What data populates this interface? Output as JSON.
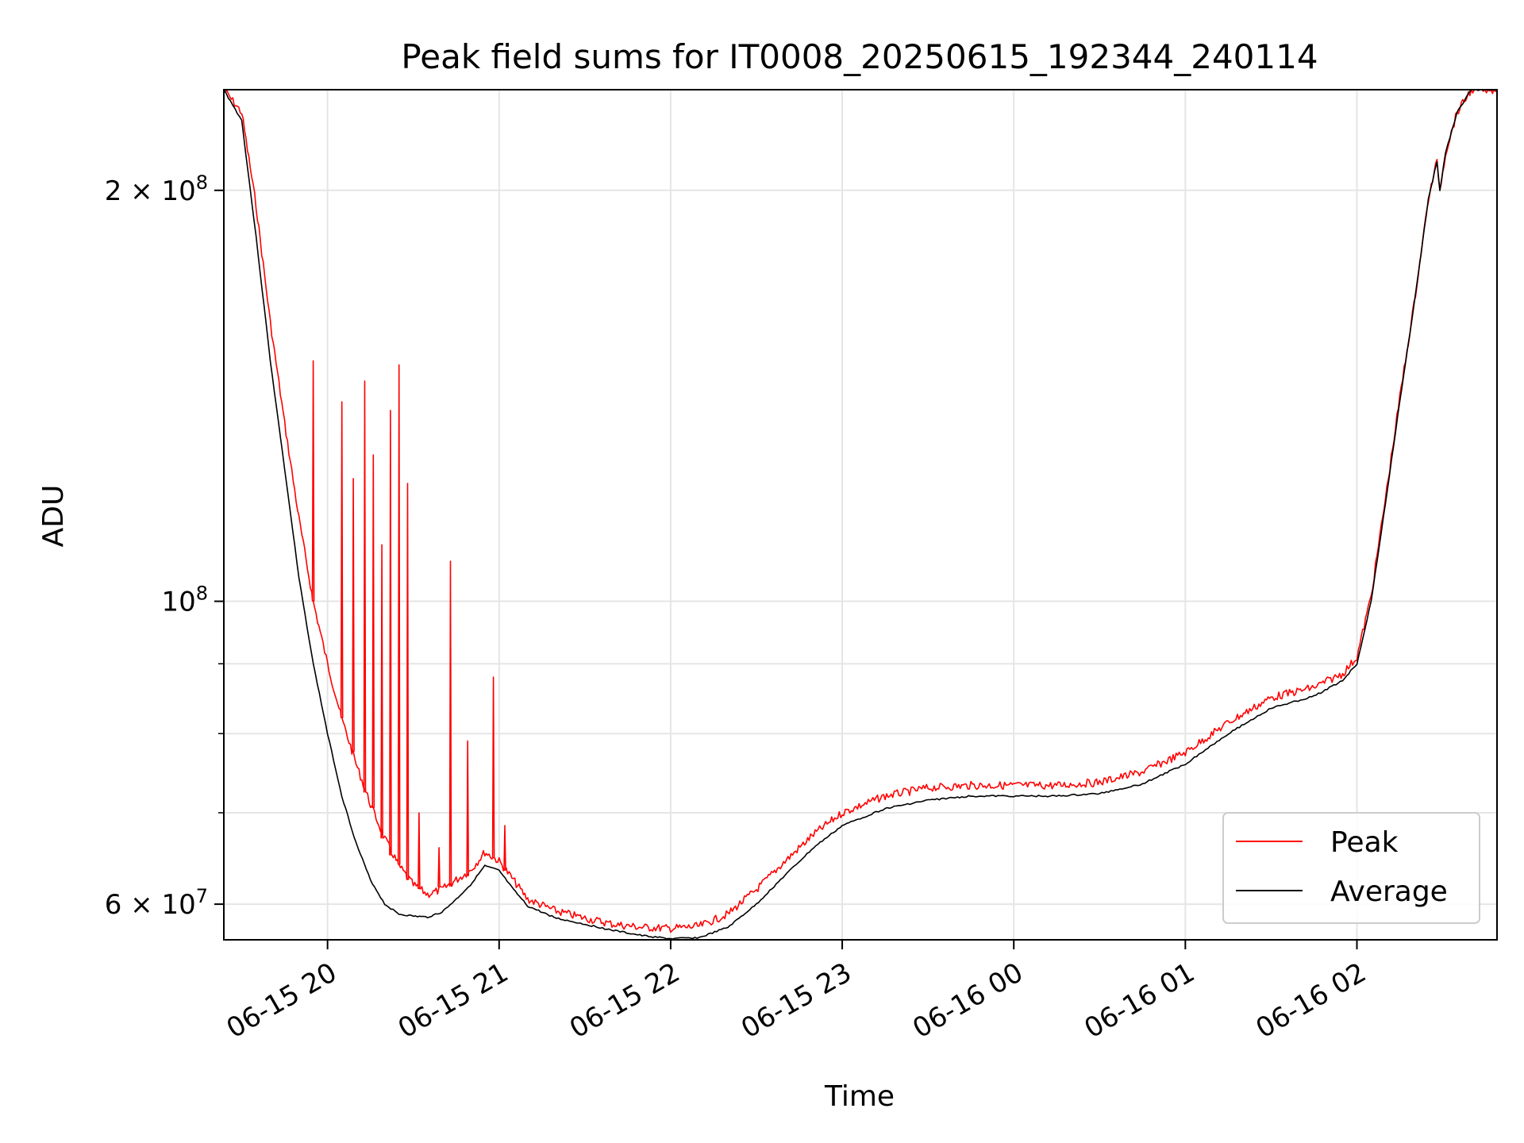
{
  "chart_data": {
    "type": "line",
    "title": "Peak field sums for IT0008_20250615_192344_240114",
    "xlabel": "Time",
    "ylabel": "ADU",
    "yscale": "log",
    "grid": true,
    "legend_position": "lower-right",
    "x_range": [
      "2025-06-15 19:23:44",
      "2025-06-16 02:49:00"
    ],
    "ylim": [
      56500000,
      237000000
    ],
    "x_ticks": [
      "06-15 20",
      "06-15 21",
      "06-15 22",
      "06-15 23",
      "06-16 00",
      "06-16 01",
      "06-16 02"
    ],
    "x_tick_times": [
      "2025-06-15 20:00",
      "2025-06-15 21:00",
      "2025-06-15 22:00",
      "2025-06-15 23:00",
      "2025-06-16 00:00",
      "2025-06-16 01:00",
      "2025-06-16 02:00"
    ],
    "y_major_ticks": [
      {
        "value": 60000000,
        "base": "6 × 10",
        "exp": "7"
      },
      {
        "value": 100000000,
        "base": "10",
        "exp": "8"
      },
      {
        "value": 200000000,
        "base": "2 × 10",
        "exp": "8"
      }
    ],
    "y_minor_ticks": [
      70000000,
      80000000,
      90000000
    ],
    "series": [
      {
        "name": "Average",
        "color": "#000000",
        "x": [
          "2025-06-15 19:23:44",
          "2025-06-15 19:30",
          "2025-06-15 19:35",
          "2025-06-15 19:40",
          "2025-06-15 19:45",
          "2025-06-15 19:50",
          "2025-06-15 19:55",
          "2025-06-15 20:00",
          "2025-06-15 20:05",
          "2025-06-15 20:10",
          "2025-06-15 20:15",
          "2025-06-15 20:20",
          "2025-06-15 20:25",
          "2025-06-15 20:30",
          "2025-06-15 20:35",
          "2025-06-15 20:40",
          "2025-06-15 20:45",
          "2025-06-15 20:50",
          "2025-06-15 20:55",
          "2025-06-15 21:00",
          "2025-06-15 21:05",
          "2025-06-15 21:10",
          "2025-06-15 21:20",
          "2025-06-15 21:30",
          "2025-06-15 21:40",
          "2025-06-15 21:50",
          "2025-06-15 22:00",
          "2025-06-15 22:10",
          "2025-06-15 22:20",
          "2025-06-15 22:30",
          "2025-06-15 22:40",
          "2025-06-15 22:50",
          "2025-06-15 23:00",
          "2025-06-15 23:15",
          "2025-06-15 23:30",
          "2025-06-15 23:45",
          "2025-06-16 00:00",
          "2025-06-16 00:15",
          "2025-06-16 00:30",
          "2025-06-16 00:45",
          "2025-06-16 01:00",
          "2025-06-16 01:15",
          "2025-06-16 01:30",
          "2025-06-16 01:45",
          "2025-06-16 01:55",
          "2025-06-16 02:00",
          "2025-06-16 02:05",
          "2025-06-16 02:10",
          "2025-06-16 02:15",
          "2025-06-16 02:20",
          "2025-06-16 02:25",
          "2025-06-16 02:28",
          "2025-06-16 02:29",
          "2025-06-16 02:31",
          "2025-06-16 02:35",
          "2025-06-16 02:40",
          "2025-06-16 02:49"
        ],
        "y": [
          237000000,
          225000000,
          185000000,
          150000000,
          125000000,
          104000000,
          90000000,
          80000000,
          72000000,
          66500000,
          62500000,
          60000000,
          59000000,
          58800000,
          58700000,
          59200000,
          60500000,
          62000000,
          64000000,
          63500000,
          61500000,
          59800000,
          58600000,
          58000000,
          57400000,
          56900000,
          56600000,
          56700000,
          57700000,
          60000000,
          63000000,
          66000000,
          68500000,
          70500000,
          71500000,
          72000000,
          72000000,
          72000000,
          72300000,
          73500000,
          76000000,
          80000000,
          83500000,
          85200000,
          87500000,
          90000000,
          100000000,
          118000000,
          140000000,
          165000000,
          197000000,
          210000000,
          200000000,
          213000000,
          228000000,
          237000000,
          237000000
        ]
      },
      {
        "name": "Peak",
        "color": "#ff0000",
        "x": [
          "2025-06-15 19:23:44",
          "2025-06-15 19:30",
          "2025-06-15 19:35",
          "2025-06-15 19:40",
          "2025-06-15 19:45",
          "2025-06-15 19:50",
          "2025-06-15 19:55",
          "2025-06-15 20:00",
          "2025-06-15 20:05",
          "2025-06-15 20:10",
          "2025-06-15 20:15",
          "2025-06-15 20:20",
          "2025-06-15 20:25",
          "2025-06-15 20:30",
          "2025-06-15 20:35",
          "2025-06-15 20:40",
          "2025-06-15 20:45",
          "2025-06-15 20:50",
          "2025-06-15 20:55",
          "2025-06-15 21:00",
          "2025-06-15 21:05",
          "2025-06-15 21:10",
          "2025-06-15 21:20",
          "2025-06-15 21:30",
          "2025-06-15 21:40",
          "2025-06-15 21:50",
          "2025-06-15 22:00",
          "2025-06-15 22:10",
          "2025-06-15 22:20",
          "2025-06-15 22:30",
          "2025-06-15 22:40",
          "2025-06-15 22:50",
          "2025-06-15 23:00",
          "2025-06-15 23:15",
          "2025-06-15 23:30",
          "2025-06-15 23:45",
          "2025-06-16 00:00",
          "2025-06-16 00:15",
          "2025-06-16 00:30",
          "2025-06-16 00:45",
          "2025-06-16 01:00",
          "2025-06-16 01:15",
          "2025-06-16 01:30",
          "2025-06-16 01:45",
          "2025-06-16 01:55",
          "2025-06-16 02:00",
          "2025-06-16 02:05",
          "2025-06-16 02:10",
          "2025-06-16 02:15",
          "2025-06-16 02:20",
          "2025-06-16 02:25",
          "2025-06-16 02:28",
          "2025-06-16 02:29",
          "2025-06-16 02:31",
          "2025-06-16 02:35",
          "2025-06-16 02:40",
          "2025-06-16 02:49"
        ],
        "y": [
          237000000,
          228000000,
          195000000,
          160000000,
          135000000,
          115000000,
          100000000,
          90000000,
          82000000,
          76000000,
          71000000,
          67000000,
          64000000,
          62000000,
          61000000,
          61500000,
          62500000,
          63500000,
          65500000,
          64500000,
          62500000,
          60500000,
          59300000,
          58600000,
          58000000,
          57700000,
          57600000,
          57800000,
          59000000,
          61500000,
          64500000,
          67500000,
          70000000,
          72000000,
          73000000,
          73300000,
          73300000,
          73300000,
          73700000,
          75000000,
          77500000,
          81500000,
          85000000,
          86500000,
          88500000,
          91000000,
          101000000,
          119000000,
          141000000,
          165000000,
          197000000,
          210000000,
          200000000,
          213000000,
          228000000,
          237000000,
          237000000
        ],
        "spikes": [
          {
            "x": "2025-06-15 19:55",
            "y": 150000000
          },
          {
            "x": "2025-06-15 20:05",
            "y": 140000000
          },
          {
            "x": "2025-06-15 20:09",
            "y": 123000000
          },
          {
            "x": "2025-06-15 20:13",
            "y": 145000000
          },
          {
            "x": "2025-06-15 20:16",
            "y": 128000000
          },
          {
            "x": "2025-06-15 20:19",
            "y": 110000000
          },
          {
            "x": "2025-06-15 20:22",
            "y": 138000000
          },
          {
            "x": "2025-06-15 20:25",
            "y": 149000000
          },
          {
            "x": "2025-06-15 20:28",
            "y": 122000000
          },
          {
            "x": "2025-06-15 20:32",
            "y": 70000000
          },
          {
            "x": "2025-06-15 20:39",
            "y": 66000000
          },
          {
            "x": "2025-06-15 20:43",
            "y": 107000000
          },
          {
            "x": "2025-06-15 20:49",
            "y": 79000000
          },
          {
            "x": "2025-06-15 20:58",
            "y": 88000000
          },
          {
            "x": "2025-06-15 21:02",
            "y": 68500000
          }
        ]
      }
    ]
  }
}
